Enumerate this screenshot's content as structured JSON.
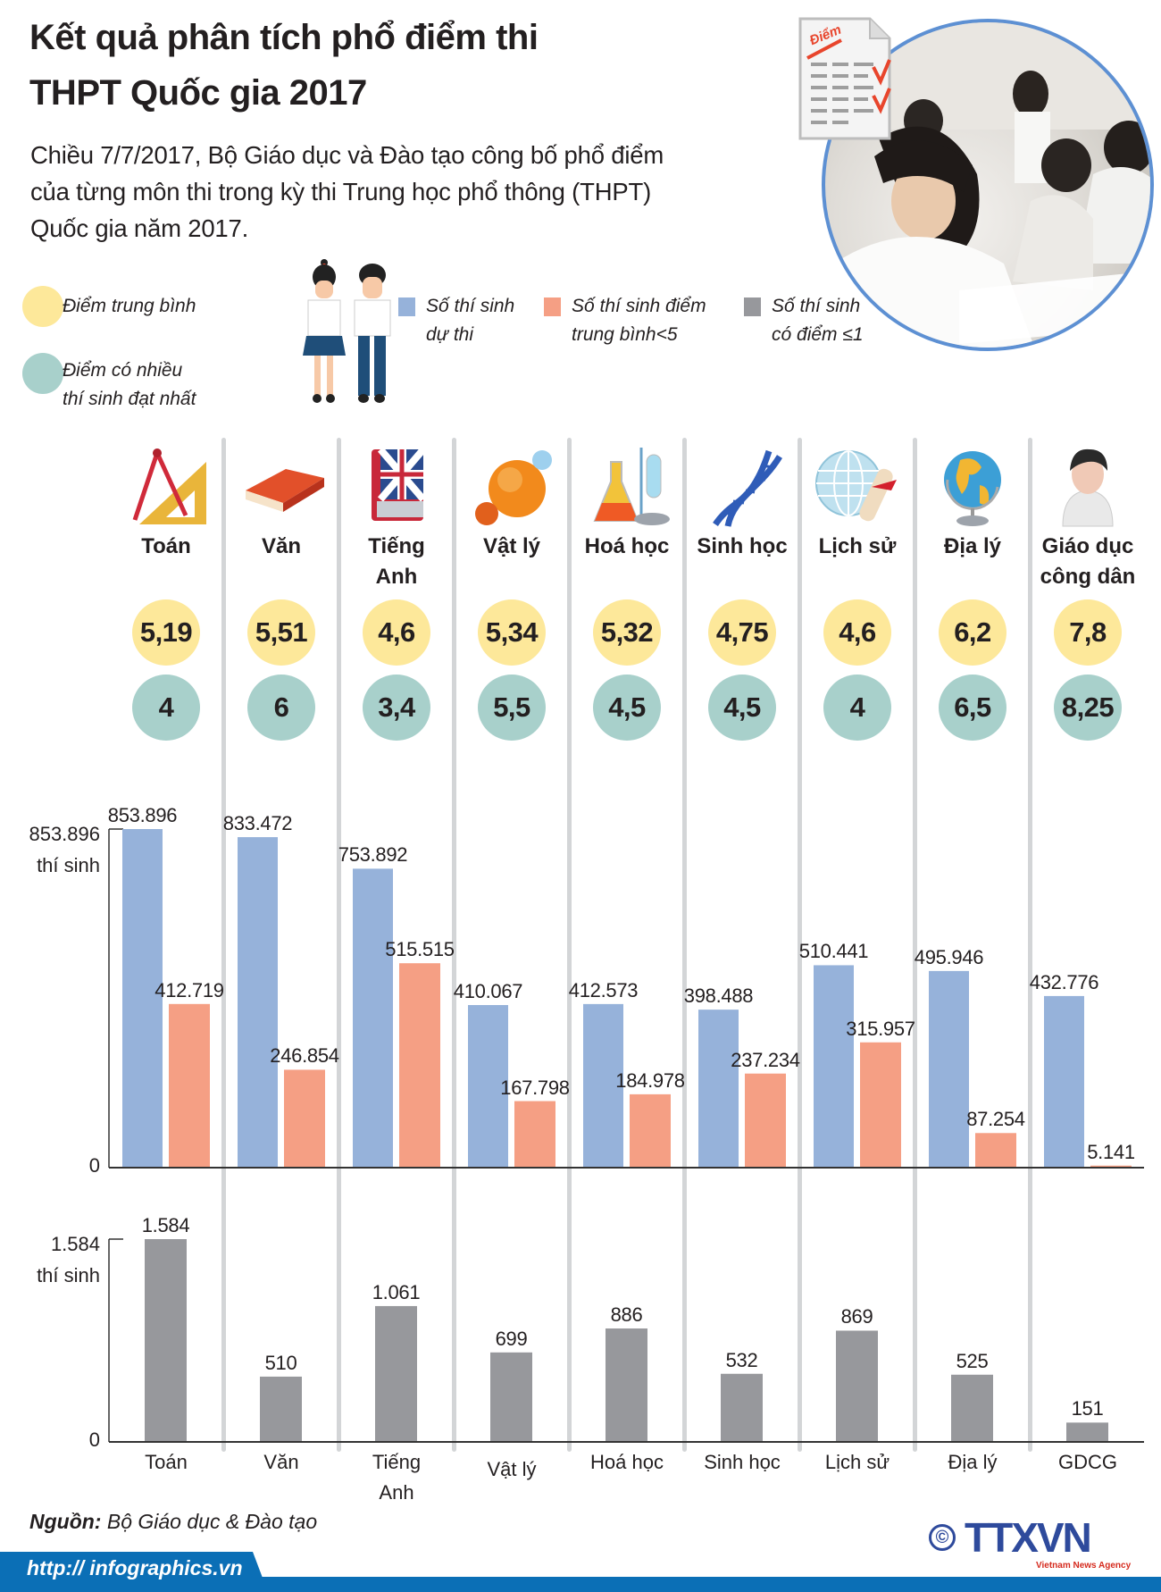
{
  "header": {
    "title_line1": "Kết quả phân tích phổ điểm thi",
    "title_line2": "THPT Quốc gia 2017",
    "intro_lines": [
      "Chiều 7/7/2017, Bộ Giáo dục và Đào tạo công bố phổ điểm",
      "của từng môn thi trong kỳ thi Trung học phổ thông (THPT)",
      "Quốc gia năm 2017."
    ],
    "document_icon_label": "Điểm"
  },
  "legend": {
    "average": {
      "label": "Điểm trung bình",
      "color": "#fde89a"
    },
    "mode": {
      "label": "Điểm có nhiều\nthí sinh đạt nhất",
      "color": "#a8d0cb"
    },
    "series": [
      {
        "label": "Số thí sinh\ndự thi",
        "color": "#96b2da"
      },
      {
        "label": "Số thí sinh điểm\ntrung bình<5",
        "color": "#f59f84"
      },
      {
        "label": "Số thí sinh\ncó điểm ≤1",
        "color": "#97989c"
      }
    ]
  },
  "subjects": [
    {
      "name": "Toán",
      "icon": "compass-ruler-icon",
      "average": "5,19",
      "mode": "4"
    },
    {
      "name": "Văn",
      "icon": "book-icon",
      "average": "5,51",
      "mode": "6"
    },
    {
      "name": "Tiếng\nAnh",
      "icon": "english-dictionary-icon",
      "average": "4,6",
      "mode": "3,4"
    },
    {
      "name": "Vật lý",
      "icon": "physics-sphere-icon",
      "average": "5,34",
      "mode": "5,5"
    },
    {
      "name": "Hoá học",
      "icon": "chemistry-flask-icon",
      "average": "5,32",
      "mode": "4,5"
    },
    {
      "name": "Sinh học",
      "icon": "dna-icon",
      "average": "4,75",
      "mode": "4,5"
    },
    {
      "name": "Lịch sử",
      "icon": "globe-scroll-icon",
      "average": "4,6",
      "mode": "4"
    },
    {
      "name": "Địa lý",
      "icon": "globe-icon",
      "average": "6,2",
      "mode": "6,5"
    },
    {
      "name": "Giáo dục\ncông dân",
      "icon": "person-icon",
      "average": "7,8",
      "mode": "8,25"
    }
  ],
  "chart_data": [
    {
      "type": "bar",
      "categories": [
        "Toán",
        "Văn",
        "Tiếng Anh",
        "Vật lý",
        "Hoá học",
        "Sinh học",
        "Lịch sử",
        "Địa lý",
        "GDCG"
      ],
      "series": [
        {
          "name": "Số thí sinh dự thi",
          "color": "#96b2da",
          "values": [
            853896,
            833472,
            753892,
            410067,
            412573,
            398488,
            510441,
            495946,
            432776
          ]
        },
        {
          "name": "Số thí sinh điểm trung bình<5",
          "color": "#f59f84",
          "values": [
            412719,
            246854,
            515515,
            167798,
            184978,
            237234,
            315957,
            87254,
            5141
          ]
        }
      ],
      "ylim": [
        0,
        853896
      ],
      "ytick_labels": [
        "0",
        "853.896\nthí sinh"
      ],
      "grid": false
    },
    {
      "type": "bar",
      "categories": [
        "Toán",
        "Văn",
        "Tiếng\nAnh",
        "Vật lý",
        "Hoá học",
        "Sinh học",
        "Lịch sử",
        "Địa lý",
        "GDCG"
      ],
      "series": [
        {
          "name": "Số thí sinh có điểm ≤1",
          "color": "#97989c",
          "values": [
            1584,
            510,
            1061,
            699,
            886,
            532,
            869,
            525,
            151
          ]
        }
      ],
      "ylim": [
        0,
        1584
      ],
      "ytick_labels": [
        "0",
        "1.584\nthí sinh"
      ],
      "grid": false
    }
  ],
  "footer": {
    "source_prefix": "Nguồn:",
    "source_text": " Bộ Giáo dục & Đào tạo",
    "url": "http:// infographics.vn",
    "logo_text": "TTXVN",
    "logo_subtext": "Vietnam News Agency",
    "copyright_symbol": "©"
  }
}
